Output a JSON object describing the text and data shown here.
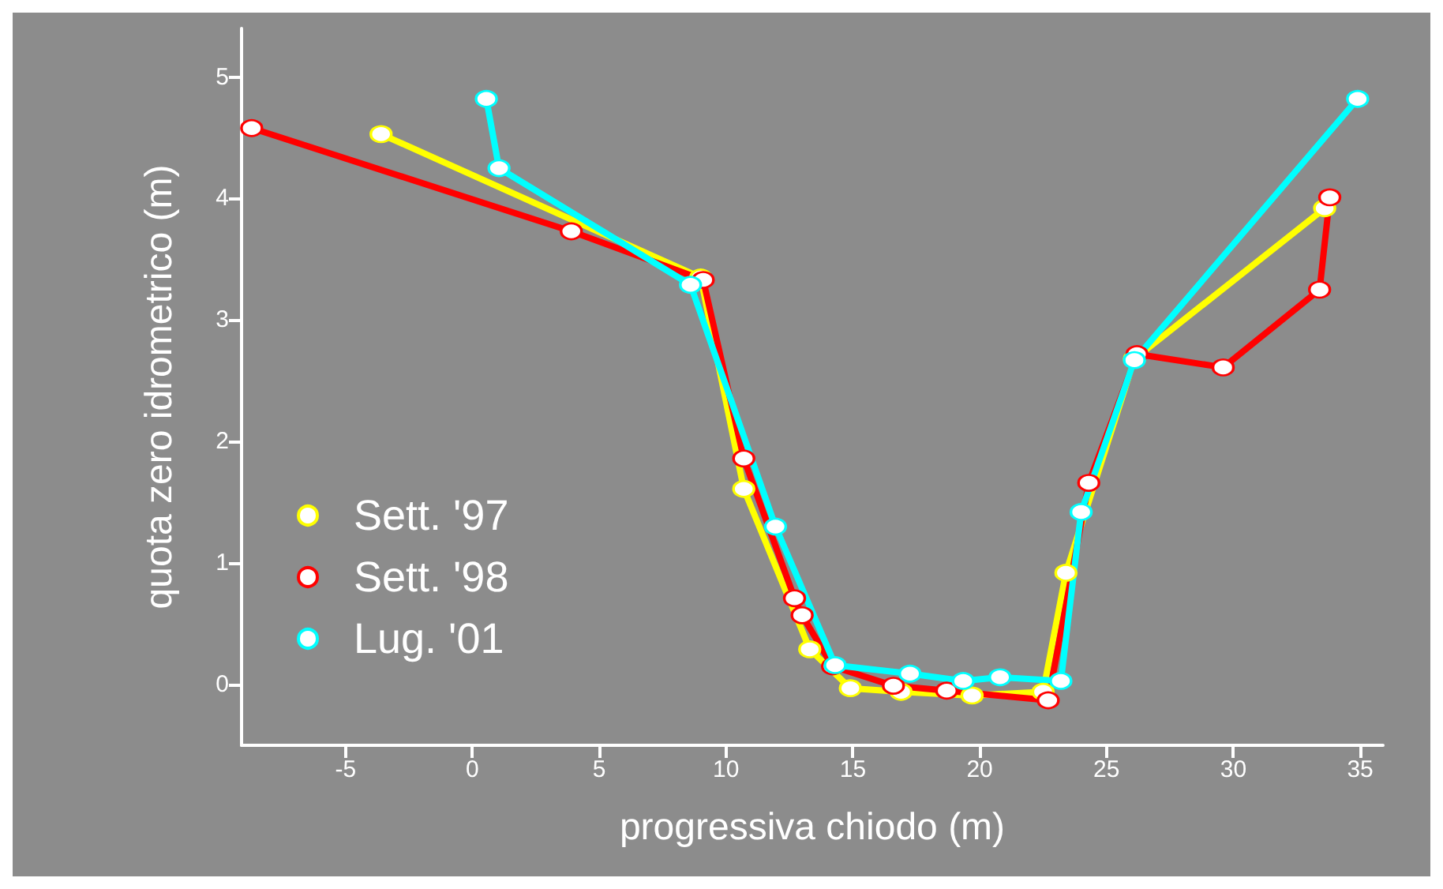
{
  "chart_data": {
    "type": "line",
    "xlabel": "progressiva chiodo (m)",
    "ylabel": "quota zero idrometrico (m)",
    "xlim": [
      -9.1,
      35.9
    ],
    "xticks": [
      -5,
      0,
      5,
      10,
      15,
      20,
      25,
      30,
      35
    ],
    "ylim": [
      -0.5,
      5.4
    ],
    "yticks": [
      0,
      1,
      2,
      3,
      4,
      5
    ],
    "grid": false,
    "legend": "left",
    "marker": "circle",
    "line_style": "solid",
    "series": [
      {
        "name": "Sett. '97",
        "color": "#ffff00",
        "x": [
          -3.6,
          9.0,
          10.7,
          13.3,
          14.9,
          16.9,
          19.7,
          22.5,
          23.4,
          26.1,
          33.6
        ],
        "values": [
          4.53,
          3.35,
          1.61,
          0.29,
          -0.03,
          -0.06,
          -0.09,
          -0.06,
          0.92,
          2.68,
          3.92
        ]
      },
      {
        "name": "Sett. '98",
        "color": "#ff0000",
        "x": [
          -8.7,
          3.9,
          9.1,
          10.7,
          12.7,
          13.0,
          14.2,
          16.6,
          18.7,
          22.7,
          24.3,
          26.2,
          29.6,
          33.4,
          33.8
        ],
        "values": [
          4.58,
          3.73,
          3.33,
          1.86,
          0.71,
          0.57,
          0.15,
          -0.01,
          -0.05,
          -0.13,
          1.66,
          2.72,
          2.61,
          3.25,
          4.01
        ]
      },
      {
        "name": "Lug. '01",
        "color": "#00ffff",
        "x": [
          0.55,
          1.05,
          8.6,
          11.95,
          14.3,
          17.25,
          19.35,
          20.8,
          23.2,
          24.0,
          26.1,
          34.9
        ],
        "values": [
          4.82,
          4.25,
          3.29,
          1.3,
          0.16,
          0.09,
          0.03,
          0.06,
          0.03,
          1.42,
          2.67,
          4.82
        ]
      }
    ]
  }
}
